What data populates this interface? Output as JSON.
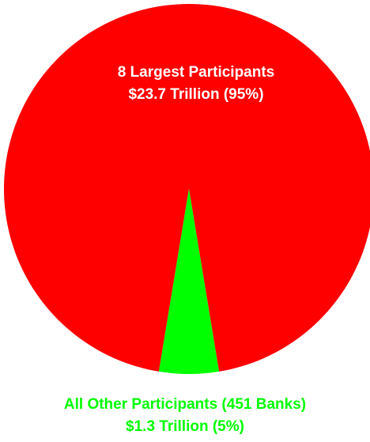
{
  "chart_data": {
    "type": "pie",
    "slices": [
      {
        "name": "8 Largest Participants",
        "value": 23.7,
        "percent": 95,
        "label_line1": "8 Largest Participants",
        "label_line2": "$23.7 Trillion (95%)",
        "color": "#ff0000",
        "label_color": "#ffffff"
      },
      {
        "name": "All Other Participants (451 Banks)",
        "value": 1.3,
        "percent": 5,
        "label_line1": "All Other Participants (451 Banks)",
        "label_line2": "$1.3 Trillion (5%)",
        "color": "#00ff00",
        "label_color": "#00ff00"
      }
    ]
  }
}
